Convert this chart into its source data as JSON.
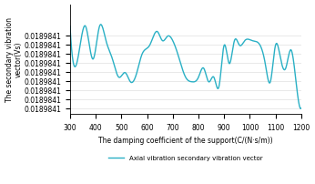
{
  "x_min": 300,
  "x_max": 1200,
  "x_ticks": [
    300,
    400,
    500,
    600,
    700,
    800,
    900,
    1000,
    1100,
    1200
  ],
  "y_min": 0.018984035,
  "y_max": 0.018984155,
  "y_ticks": [
    0.018984041,
    0.018984051,
    0.018984061,
    0.018984071,
    0.018984081,
    0.018984091,
    0.018984101,
    0.018984111,
    0.018984121
  ],
  "xlabel": "The damping coefficient of the support(C/(N·s/m))",
  "ylabel": "The secondary vibration\nvector(Vs)",
  "legend": "Axial vibration secondary vibration vector",
  "line_color": "#2ab0c5",
  "line_width": 1.0,
  "grid_color": "#cccccc",
  "grid_alpha": 0.6,
  "background_color": "#ffffff",
  "keypoints_x": [
    300,
    330,
    360,
    390,
    415,
    440,
    465,
    490,
    515,
    535,
    560,
    580,
    610,
    640,
    660,
    680,
    700,
    720,
    750,
    775,
    800,
    820,
    840,
    860,
    880,
    900,
    920,
    940,
    960,
    980,
    1010,
    1040,
    1060,
    1080,
    1100,
    1120,
    1140,
    1160,
    1180,
    1200
  ],
  "keypoints_y": [
    0.018984131,
    0.018984095,
    0.018984131,
    0.018984095,
    0.018984131,
    0.018984115,
    0.018984095,
    0.018984075,
    0.01898408,
    0.01898407,
    0.01898408,
    0.0189841,
    0.01898411,
    0.018984125,
    0.018984115,
    0.01898412,
    0.018984115,
    0.0189841,
    0.018984075,
    0.01898407,
    0.018984075,
    0.018984085,
    0.01898407,
    0.018984075,
    0.018984065,
    0.01898411,
    0.01898409,
    0.018984115,
    0.01898411,
    0.018984115,
    0.018984115,
    0.01898411,
    0.01898409,
    0.01898407,
    0.01898411,
    0.018984095,
    0.018984085,
    0.018984105,
    0.01898407,
    0.018984041
  ]
}
